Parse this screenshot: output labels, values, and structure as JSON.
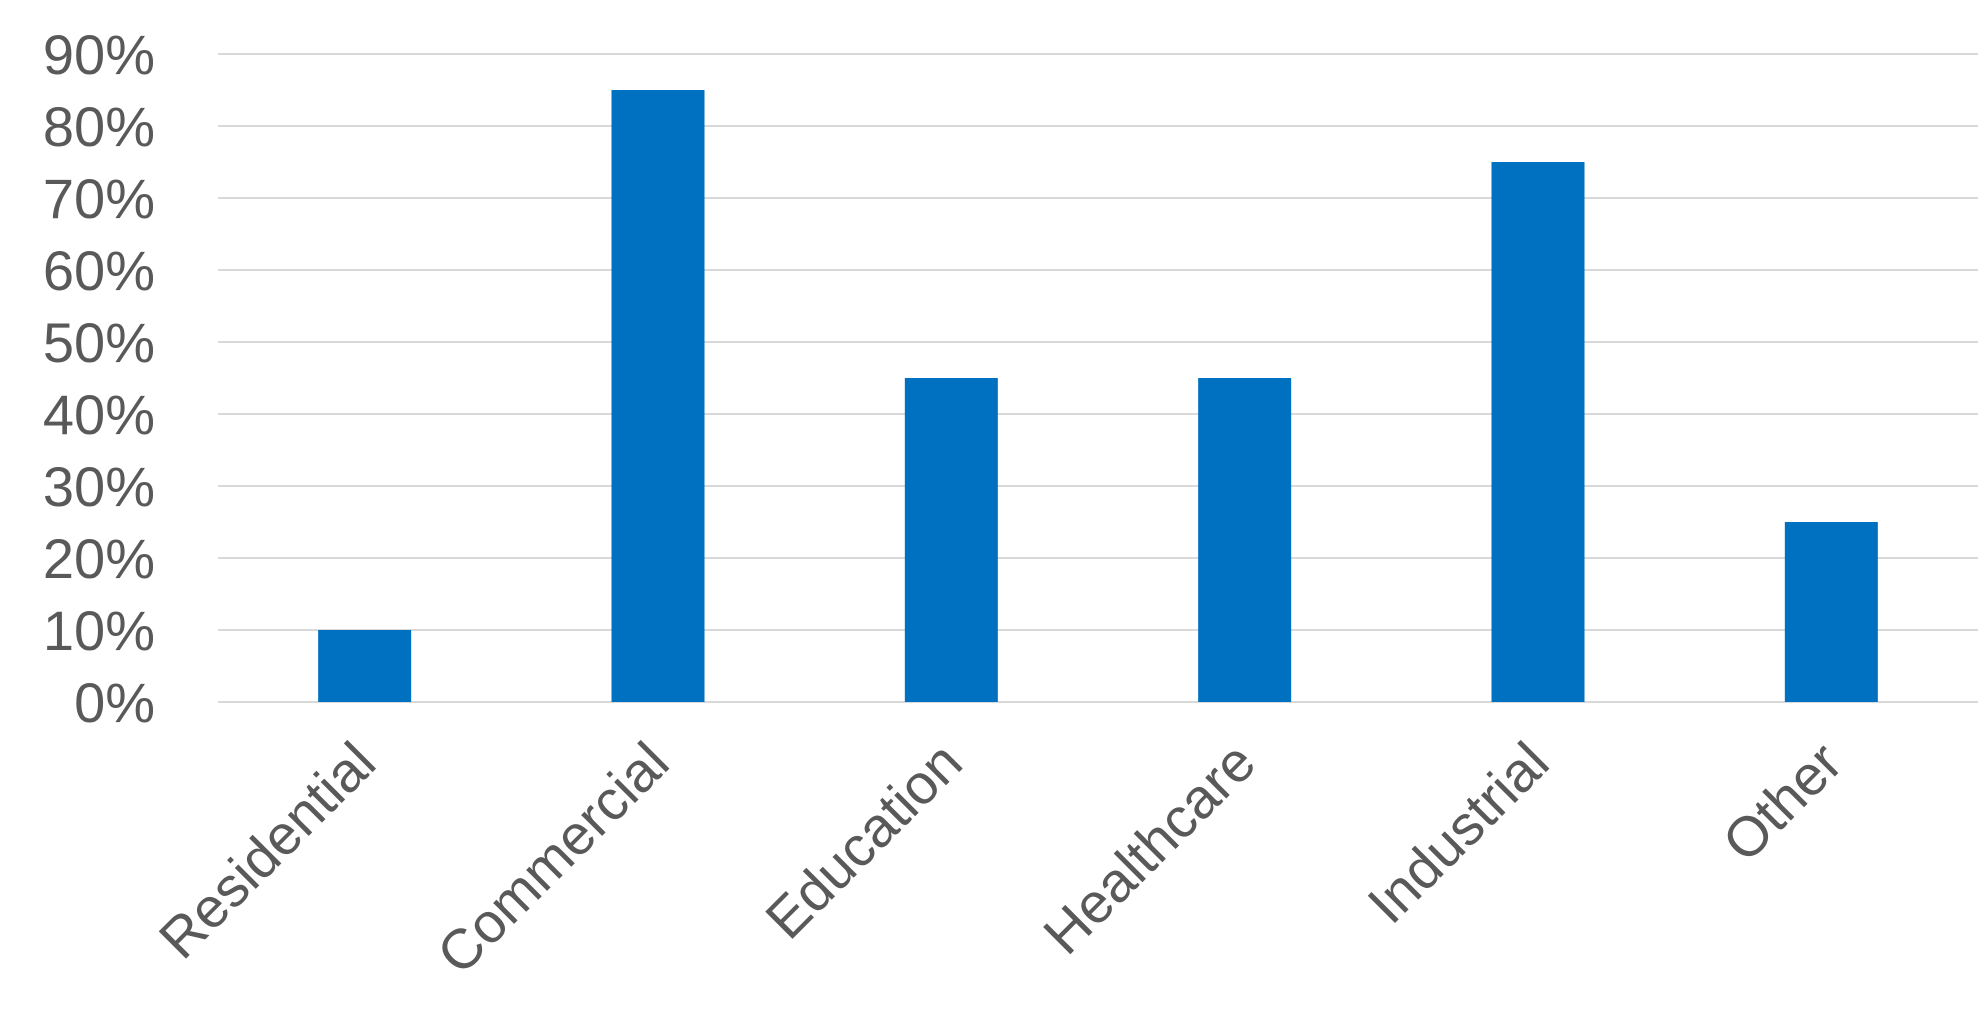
{
  "chart_data": {
    "type": "bar",
    "categories": [
      "Residential",
      "Commercial",
      "Education",
      "Healthcare",
      "Industrial",
      "Other"
    ],
    "values": [
      10,
      85,
      45,
      45,
      75,
      25
    ],
    "y_tick_labels": [
      "0%",
      "10%",
      "20%",
      "30%",
      "40%",
      "50%",
      "60%",
      "70%",
      "80%",
      "90%"
    ],
    "ylim": [
      0,
      90
    ],
    "title": "",
    "xlabel": "",
    "ylabel": "",
    "grid": true,
    "legend": "none",
    "bar_color": "#0070C0",
    "gridline_color": "#D9D9D9",
    "text_color": "#595959"
  }
}
